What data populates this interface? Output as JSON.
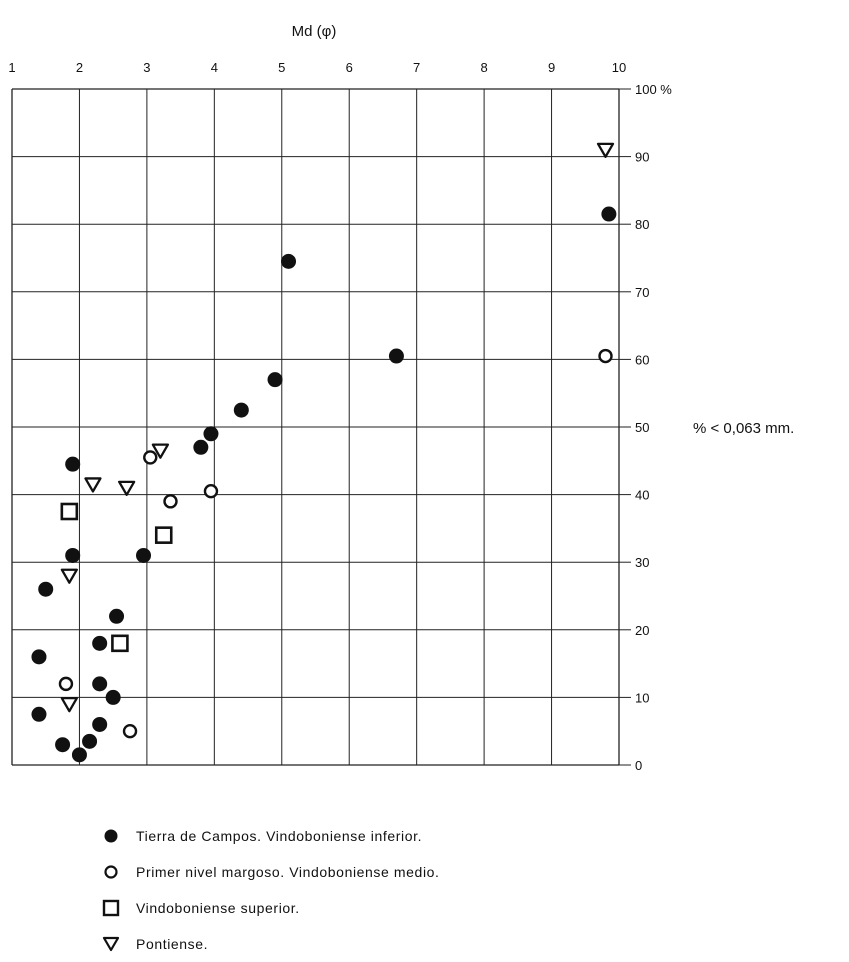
{
  "chart_data": {
    "type": "scatter",
    "title": "",
    "xlabel": "Md (φ)",
    "ylabel": "% < 0,063 mm.",
    "xlim": [
      1,
      10
    ],
    "ylim": [
      0,
      100
    ],
    "x_ticks": [
      "1",
      "2",
      "3",
      "4",
      "5",
      "6",
      "7",
      "8",
      "9",
      "10"
    ],
    "y_ticks": [
      "0",
      "10",
      "20",
      "30",
      "40",
      "50",
      "60",
      "70",
      "80",
      "90",
      "100 %"
    ],
    "grid": true,
    "legend_position": "bottom",
    "series": [
      {
        "name": "Tierra de Campos. Vindoboniense inferior.",
        "marker": "filled-circle",
        "points": [
          {
            "x": 1.4,
            "y": 7.5
          },
          {
            "x": 1.4,
            "y": 16
          },
          {
            "x": 1.5,
            "y": 26
          },
          {
            "x": 1.75,
            "y": 3
          },
          {
            "x": 1.9,
            "y": 31
          },
          {
            "x": 1.9,
            "y": 44.5
          },
          {
            "x": 2.0,
            "y": 1.5
          },
          {
            "x": 2.15,
            "y": 3.5
          },
          {
            "x": 2.3,
            "y": 6
          },
          {
            "x": 2.3,
            "y": 18
          },
          {
            "x": 2.3,
            "y": 12
          },
          {
            "x": 2.5,
            "y": 10
          },
          {
            "x": 2.55,
            "y": 22
          },
          {
            "x": 2.95,
            "y": 31
          },
          {
            "x": 3.8,
            "y": 47
          },
          {
            "x": 3.95,
            "y": 49
          },
          {
            "x": 4.4,
            "y": 52.5
          },
          {
            "x": 4.9,
            "y": 57
          },
          {
            "x": 5.1,
            "y": 74.5
          },
          {
            "x": 6.7,
            "y": 60.5
          },
          {
            "x": 9.85,
            "y": 81.5
          }
        ]
      },
      {
        "name": "Primer nivel margoso. Vindoboniense medio.",
        "marker": "open-circle",
        "points": [
          {
            "x": 1.8,
            "y": 12
          },
          {
            "x": 2.75,
            "y": 5
          },
          {
            "x": 3.05,
            "y": 45.5
          },
          {
            "x": 3.35,
            "y": 39
          },
          {
            "x": 3.95,
            "y": 40.5
          },
          {
            "x": 9.8,
            "y": 60.5
          }
        ]
      },
      {
        "name": "Vindoboniense superior.",
        "marker": "open-square",
        "points": [
          {
            "x": 1.85,
            "y": 37.5
          },
          {
            "x": 2.6,
            "y": 18
          },
          {
            "x": 3.25,
            "y": 34
          }
        ]
      },
      {
        "name": "Pontiense.",
        "marker": "open-triangle-down",
        "points": [
          {
            "x": 1.85,
            "y": 9
          },
          {
            "x": 1.85,
            "y": 28
          },
          {
            "x": 2.2,
            "y": 41.5
          },
          {
            "x": 2.7,
            "y": 41
          },
          {
            "x": 3.2,
            "y": 46.5
          },
          {
            "x": 9.8,
            "y": 91
          }
        ]
      }
    ]
  }
}
